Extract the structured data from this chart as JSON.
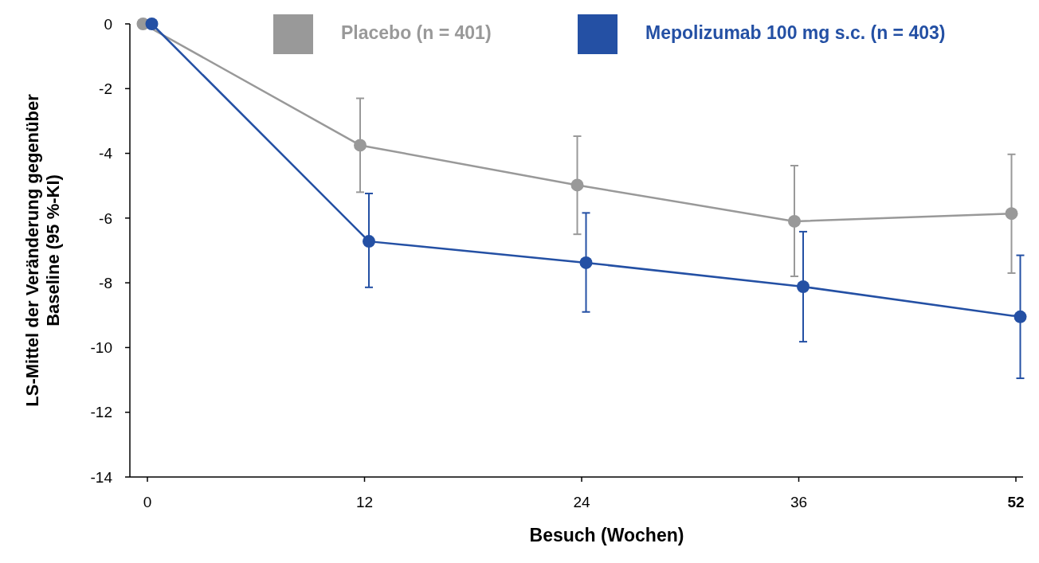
{
  "chart_data": {
    "type": "line",
    "xlabel": "Besuch (Wochen)",
    "ylabel": "LS-Mittel der Veränderung gegenüber Baseline (95 %-KI)",
    "categories": [
      "0",
      "12",
      "24",
      "36",
      "52"
    ],
    "series": [
      {
        "name": "Placebo (n = 401)",
        "color": "#999999",
        "values": [
          0,
          -3.75,
          -4.98,
          -6.1,
          -5.86
        ],
        "errors": [
          null,
          [
            -5.2,
            -2.3
          ],
          [
            -6.5,
            -3.47
          ],
          [
            -7.8,
            -4.38
          ],
          [
            -7.7,
            -4.03
          ]
        ]
      },
      {
        "name": "Mepolizumab 100 mg s.c. (n = 403)",
        "color": "#2450a4",
        "values": [
          0,
          -6.72,
          -7.38,
          -8.12,
          -9.05
        ],
        "errors": [
          null,
          [
            -8.14,
            -5.24
          ],
          [
            -8.9,
            -5.84
          ],
          [
            -9.82,
            -6.42
          ],
          [
            -10.95,
            -7.15
          ]
        ]
      }
    ],
    "ylim": [
      -14,
      0
    ],
    "yticks": [
      -14,
      -12,
      -10,
      -8,
      -6,
      -4,
      -2,
      0
    ],
    "grid": false,
    "legend": "top",
    "marker": "circle",
    "line_style": "solid"
  }
}
